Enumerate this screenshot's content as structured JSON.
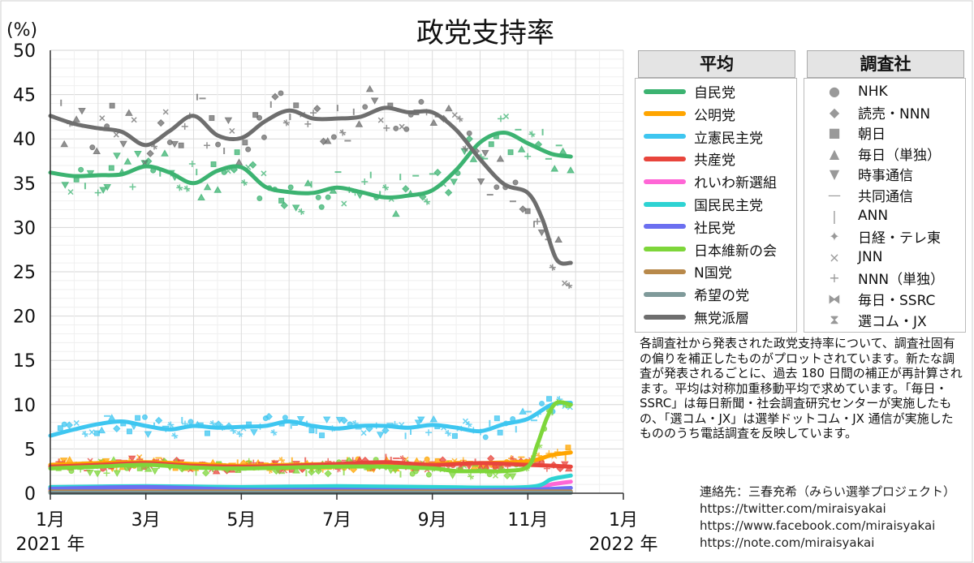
{
  "chart_data": {
    "type": "line",
    "title": "政党支持率",
    "ylabel": "(%)",
    "ylim": [
      0,
      50
    ],
    "yticks": [
      0,
      5,
      10,
      15,
      20,
      25,
      30,
      35,
      40,
      45,
      50
    ],
    "xticks": [
      {
        "label": "1月",
        "month": 0,
        "year_label": "2021 年"
      },
      {
        "label": "3月",
        "month": 2
      },
      {
        "label": "5月",
        "month": 4
      },
      {
        "label": "7月",
        "month": 6
      },
      {
        "label": "9月",
        "month": 8
      },
      {
        "label": "11月",
        "month": 10
      },
      {
        "label": "1月",
        "month": 12,
        "year_label": "2022 年"
      }
    ],
    "grid": true,
    "x_unit": "months since 2021-01",
    "series": [
      {
        "name": "自民党",
        "color": "#3cb371",
        "x": [
          0,
          0.5,
          1,
          1.5,
          2,
          2.5,
          3,
          3.5,
          4,
          4.5,
          5,
          5.5,
          6,
          6.5,
          7,
          7.5,
          8,
          8.5,
          9,
          9.5,
          10,
          10.5,
          10.9
        ],
        "values": [
          36.2,
          35.8,
          35.9,
          36.0,
          36.9,
          36.2,
          35.0,
          36.4,
          36.8,
          34.6,
          34.0,
          33.9,
          34.5,
          34.0,
          33.4,
          33.6,
          34.2,
          36.5,
          39.6,
          40.7,
          39.5,
          38.3,
          38.0
        ]
      },
      {
        "name": "公明党",
        "color": "#ffa500",
        "x": [
          0,
          1,
          2,
          3,
          4,
          5,
          6,
          7,
          8,
          9,
          10,
          10.5,
          10.9
        ],
        "values": [
          3.2,
          3.4,
          3.5,
          3.3,
          3.1,
          3.2,
          3.3,
          3.2,
          3.3,
          3.4,
          3.6,
          4.3,
          4.6
        ]
      },
      {
        "name": "立憲民主党",
        "color": "#3ec6f0",
        "x": [
          0,
          0.5,
          1,
          1.5,
          2,
          2.5,
          3,
          3.5,
          4,
          4.5,
          5,
          5.5,
          6,
          6.5,
          7,
          7.5,
          8,
          8.5,
          9,
          9.5,
          10,
          10.5,
          10.9
        ],
        "values": [
          6.5,
          7.2,
          7.8,
          8.1,
          7.6,
          7.2,
          7.6,
          7.4,
          7.5,
          7.6,
          8.1,
          7.6,
          7.3,
          7.6,
          7.6,
          7.4,
          7.7,
          7.4,
          7.0,
          7.8,
          8.4,
          10.0,
          10.2
        ]
      },
      {
        "name": "共産党",
        "color": "#e8453c",
        "x": [
          0,
          1,
          2,
          3,
          4,
          5,
          6,
          7,
          8,
          9,
          10,
          10.5,
          10.9
        ],
        "values": [
          3.0,
          3.2,
          3.4,
          3.1,
          3.0,
          3.1,
          3.3,
          3.5,
          3.2,
          3.4,
          3.2,
          3.1,
          3.0
        ]
      },
      {
        "name": "れいわ新選組",
        "color": "#ff66d6",
        "x": [
          0,
          2,
          4,
          6,
          8,
          10,
          10.5,
          10.9
        ],
        "values": [
          0.4,
          0.6,
          0.5,
          0.4,
          0.5,
          0.5,
          1.0,
          1.3
        ]
      },
      {
        "name": "国民民主党",
        "color": "#2ed3d3",
        "x": [
          0,
          2,
          4,
          6,
          8,
          10,
          10.5,
          10.9
        ],
        "values": [
          0.7,
          0.8,
          0.7,
          0.8,
          0.7,
          0.7,
          1.6,
          2.0
        ]
      },
      {
        "name": "社民党",
        "color": "#6b6ff0",
        "x": [
          0,
          2,
          4,
          6,
          8,
          10,
          10.9
        ],
        "values": [
          0.5,
          0.7,
          0.4,
          0.4,
          0.3,
          0.4,
          0.6
        ]
      },
      {
        "name": "日本維新の会",
        "color": "#7ed63a",
        "x": [
          0,
          1,
          2,
          3,
          4,
          5,
          6,
          7,
          8,
          8.5,
          9,
          9.5,
          10,
          10.2,
          10.4,
          10.6,
          10.9
        ],
        "values": [
          2.8,
          3.0,
          3.2,
          2.9,
          2.8,
          2.9,
          3.0,
          3.0,
          2.8,
          2.5,
          2.5,
          2.5,
          3.0,
          5.5,
          8.5,
          10.2,
          10.0
        ]
      },
      {
        "name": "N国党",
        "color": "#b8894a",
        "x": [
          0,
          4,
          8,
          10.9
        ],
        "values": [
          0.2,
          0.2,
          0.2,
          0.2
        ]
      },
      {
        "name": "希望の党",
        "color": "#7f9a9a",
        "x": [
          0,
          4,
          8,
          10.9
        ],
        "values": [
          0.05,
          0.05,
          0.05,
          0.05
        ]
      },
      {
        "name": "無党派層",
        "color": "#6e6e6e",
        "x": [
          0,
          0.5,
          1,
          1.5,
          2,
          2.5,
          3,
          3.5,
          4,
          4.5,
          5,
          5.5,
          6,
          6.5,
          7,
          7.5,
          8,
          8.5,
          9,
          9.5,
          10,
          10.3,
          10.6,
          10.9
        ],
        "values": [
          42.6,
          41.7,
          41.2,
          40.8,
          39.3,
          40.9,
          42.6,
          40.4,
          40.1,
          42.0,
          43.2,
          42.3,
          42.3,
          42.5,
          43.5,
          43.0,
          43.0,
          41.0,
          37.7,
          34.9,
          33.9,
          31.0,
          26.4,
          26.0
        ]
      }
    ],
    "legend_parties_title": "平均",
    "legend_pollsters_title": "調査社",
    "pollsters": [
      {
        "name": "NHK",
        "marker": "●"
      },
      {
        "name": "読売・NNN",
        "marker": "◆"
      },
      {
        "name": "朝日",
        "marker": "■"
      },
      {
        "name": "毎日（単独）",
        "marker": "▲"
      },
      {
        "name": "時事通信",
        "marker": "▼"
      },
      {
        "name": "共同通信",
        "marker": "—"
      },
      {
        "name": "ANN",
        "marker": "|"
      },
      {
        "name": "日経・テレ東",
        "marker": "✦"
      },
      {
        "name": "JNN",
        "marker": "×"
      },
      {
        "name": "NNN（単独）",
        "marker": "+"
      },
      {
        "name": "毎日・SSRC",
        "marker": "⧓"
      },
      {
        "name": "選コム・JX",
        "marker": "⧗"
      }
    ]
  },
  "note": "各調査社から発表された政党支持率について、調査社固有の偏りを補正したものがプロットされています。新たな調査が発表されるごとに、過去 180 日間の補正が再計算されます。平均は対称加重移動平均で求めています。「毎日・SSRC」は毎日新聞・社会調査研究センターが実施したもの、「選コム・JX」は選挙ドットコム・JX 通信が実施したもののうち電話調査を反映しています。",
  "contact": {
    "label": "連絡先：三春充希（みらい選挙プロジェクト）",
    "twitter": "https://twitter.com/miraisyakai",
    "facebook": "https://www.facebook.com/miraisyakai",
    "note_url": "https://note.com/miraisyakai"
  }
}
